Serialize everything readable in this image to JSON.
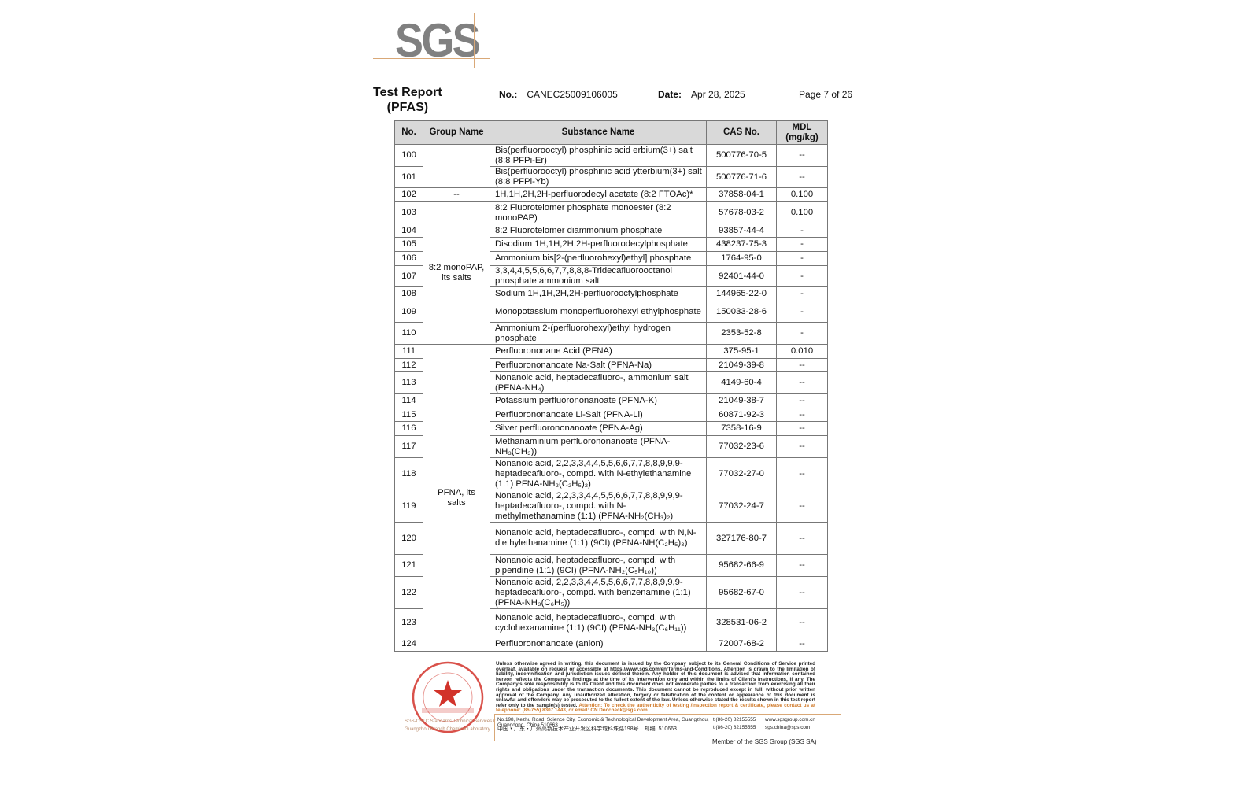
{
  "logo": {
    "text": "SGS"
  },
  "header": {
    "title_line1": "Test Report",
    "title_line2": "(PFAS)",
    "no_label": "No.:",
    "no_value": "CANEC25009106005",
    "date_label": "Date:",
    "date_value": "Apr 28, 2025",
    "page": "Page 7 of 26"
  },
  "table": {
    "headers": [
      "No.",
      "Group Name",
      "Substance Name",
      "CAS No.",
      "MDL\n(mg/kg)"
    ],
    "groups": [
      {
        "name": "",
        "start": 0,
        "span": 2
      },
      {
        "name": "--",
        "start": 2,
        "span": 1
      },
      {
        "name": "8:2 monoPAP, its salts",
        "start": 3,
        "span": 8
      },
      {
        "name": "PFNA, its salts",
        "start": 11,
        "span": 14
      }
    ],
    "rows": [
      {
        "no": "100",
        "substance": "Bis(perfluorooctyl) phosphinic acid erbium(3+) salt (8:8 PFPi-Er)",
        "cas": "500776-70-5",
        "mdl": "--"
      },
      {
        "no": "101",
        "substance": "Bis(perfluorooctyl) phosphinic acid ytterbium(3+) salt (8:8 PFPi-Yb)",
        "cas": "500776-71-6",
        "mdl": "--"
      },
      {
        "no": "102",
        "substance": "1H,1H,2H,2H-perfluorodecyl acetate (8:2 FTOAc)*",
        "cas": "37858-04-1",
        "mdl": "0.100"
      },
      {
        "no": "103",
        "substance": "8:2 Fluorotelomer phosphate monoester (8:2 monoPAP)",
        "cas": "57678-03-2",
        "mdl": "0.100"
      },
      {
        "no": "104",
        "substance": "8:2 Fluorotelomer diammonium phosphate",
        "cas": "93857-44-4",
        "mdl": "-"
      },
      {
        "no": "105",
        "substance": "Disodium 1H,1H,2H,2H-perfluorodecylphosphate",
        "cas": "438237-75-3",
        "mdl": "-"
      },
      {
        "no": "106",
        "substance": "Ammonium bis[2-(perfluorohexyl)ethyl] phosphate",
        "cas": "1764-95-0",
        "mdl": "-"
      },
      {
        "no": "107",
        "substance": "3,3,4,4,5,5,6,6,7,7,8,8,8-Tridecafluorooctanol phosphate ammonium salt",
        "cas": "92401-44-0",
        "mdl": "-"
      },
      {
        "no": "108",
        "substance": "Sodium 1H,1H,2H,2H-perfluorooctylphosphate",
        "cas": "144965-22-0",
        "mdl": "-"
      },
      {
        "no": "109",
        "substance": "Monopotassium monoperfluorohexyl ethylphosphate",
        "cas": "150033-28-6",
        "mdl": "-"
      },
      {
        "no": "110",
        "substance": "Ammonium 2-(perfluorohexyl)ethyl hydrogen phosphate",
        "cas": "2353-52-8",
        "mdl": "-"
      },
      {
        "no": "111",
        "substance": "Perfluorononane Acid (PFNA)",
        "cas": "375-95-1",
        "mdl": "0.010"
      },
      {
        "no": "112",
        "substance": "Perfluorononanoate Na-Salt (PFNA-Na)",
        "cas": "21049-39-8",
        "mdl": "--"
      },
      {
        "no": "113",
        "substance": "Nonanoic acid, heptadecafluoro-, ammonium salt (PFNA-NH₄)",
        "cas": "4149-60-4",
        "mdl": "--"
      },
      {
        "no": "114",
        "substance": "Potassium perfluorononanoate (PFNA-K)",
        "cas": "21049-38-7",
        "mdl": "--"
      },
      {
        "no": "115",
        "substance": "Perfluorononanoate Li-Salt (PFNA-Li)",
        "cas": "60871-92-3",
        "mdl": "--"
      },
      {
        "no": "116",
        "substance": "Silver perfluorononanoate (PFNA-Ag)",
        "cas": "7358-16-9",
        "mdl": "--"
      },
      {
        "no": "117",
        "substance": "Methanaminium perfluorononanoate (PFNA-NH₃(CH₃))",
        "cas": "77032-23-6",
        "mdl": "--"
      },
      {
        "no": "118",
        "substance": "Nonanoic acid, 2,2,3,3,4,4,5,5,6,6,7,7,8,8,9,9,9-heptadecafluoro-, compd. with N-ethylethanamine (1:1) PFNA-NH₂(C₂H₅)₂)",
        "cas": "77032-27-0",
        "mdl": "--"
      },
      {
        "no": "119",
        "substance": "Nonanoic acid, 2,2,3,3,4,4,5,5,6,6,7,7,8,8,9,9,9-heptadecafluoro-, compd. with N-methylmethanamine (1:1) (PFNA-NH₂(CH₃)₂)",
        "cas": "77032-24-7",
        "mdl": "--"
      },
      {
        "no": "120",
        "substance": "Nonanoic acid, heptadecafluoro-, compd. with N,N-diethylethanamine (1:1) (9CI) (PFNA-NH(C₂H₅)₃)",
        "cas": "327176-80-7",
        "mdl": "--"
      },
      {
        "no": "121",
        "substance": "Nonanoic acid, heptadecafluoro-, compd. with piperidine (1:1) (9CI) (PFNA-NH₂(C₅H₁₀))",
        "cas": "95682-66-9",
        "mdl": "--"
      },
      {
        "no": "122",
        "substance": "Nonanoic acid, 2,2,3,3,4,4,5,5,6,6,7,7,8,8,9,9,9-heptadecafluoro-, compd. with benzenamine (1:1) (PFNA-NH₃(C₆H₅))",
        "cas": "95682-67-0",
        "mdl": "--"
      },
      {
        "no": "123",
        "substance": "Nonanoic acid, heptadecafluoro-, compd. with cyclohexanamine (1:1) (9CI) (PFNA-NH₃(C₆H₁₁))",
        "cas": "328531-06-2",
        "mdl": "--"
      },
      {
        "no": "124",
        "substance": "Perfluorononanoate (anion)",
        "cas": "72007-68-2",
        "mdl": "--"
      }
    ]
  },
  "footer": {
    "disclaimer": "Unless otherwise agreed in writing, this document is issued by the Company subject to its General Conditions of Service printed overleaf, available on request or accessible at https://www.sgs.com/en/Terms-and-Conditions. Attention is drawn to the limitation of liability, indemnification and jurisdiction issues defined therein. Any holder of this document is advised that information contained hereon reflects the Company's findings at the time of its intervention only and within the limits of Client's instructions, if any. The Company's sole responsibility is to its Client and this document does not exonerate parties to a transaction from exercising all their rights and obligations under the transaction documents. This document cannot be reproduced except in full, without prior written approval of the Company. Any unauthorized alteration, forgery or falsification of the content or appearance of this document is unlawful and offenders may be prosecuted to the fullest extent of the law. Unless otherwise stated the results shown in this test report refer only to the sample(s) tested.",
    "attention": "Attention: To check the authenticity of testing /inspection report & certificate, please contact us at telephone: (86-755) 8307 1443, or email: CN.Doccheck@sgs.com",
    "address_en": "No.198, Kezhu Road, Science City, Economic & Technological Development Area, Guangzhou, Guangdong, China 510663",
    "address_cn": "中国・广东・广州高新技术产业开发区科学城科珠路198号　邮编: 510663",
    "tel1": "t (86-20) 82155555",
    "tel2": "t (86-20) 82155555",
    "web": "www.sgsgroup.com.cn",
    "email": "sgs.china@sgs.com",
    "member": "Member of the SGS Group (SGS SA)"
  },
  "stamp": {
    "text_cn": "通标标准技术服务有限公司广州分公司",
    "label_cn": "检验检测专用章",
    "label_en": "Inspection & Testing Services",
    "company_line1": "SGS-CSTC Standards Technical Services Co., Ltd.",
    "company_line2": "Guangzhou Branch Chemical Laboratory"
  },
  "colors": {
    "accent": "#d9a877",
    "logo_gray": "#808080",
    "stamp_red": "#d2332a",
    "header_bg": "#d9d9d9"
  }
}
